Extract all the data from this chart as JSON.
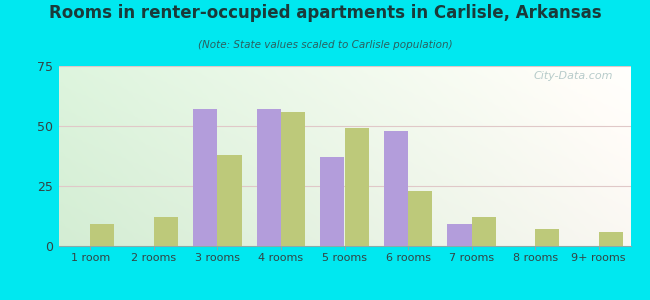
{
  "title": "Rooms in renter-occupied apartments in Carlisle, Arkansas",
  "subtitle": "(Note: State values scaled to Carlisle population)",
  "categories": [
    "1 room",
    "2 rooms",
    "3 rooms",
    "4 rooms",
    "5 rooms",
    "6 rooms",
    "7 rooms",
    "8 rooms",
    "9+ rooms"
  ],
  "carlisle": [
    0,
    0,
    57,
    57,
    37,
    48,
    9,
    0,
    0
  ],
  "arkansas": [
    9,
    12,
    38,
    56,
    49,
    23,
    12,
    7,
    6
  ],
  "carlisle_color": "#b39ddb",
  "arkansas_color": "#bdc97a",
  "ylim": [
    0,
    75
  ],
  "yticks": [
    0,
    25,
    50,
    75
  ],
  "background_outer": "#00e8f0",
  "watermark": "City-Data.com",
  "bar_width": 0.38,
  "title_color": "#1a3a3a",
  "subtitle_color": "#2a6060"
}
